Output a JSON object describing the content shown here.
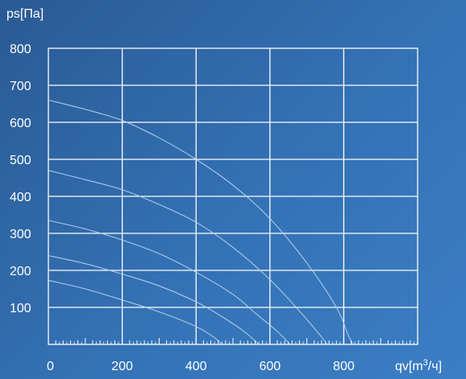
{
  "chart_data": {
    "type": "line",
    "ylabel": "ps[Па]",
    "xlabel_base": "qv[m",
    "xlabel_sup": "3",
    "xlabel_tail": "/ч]",
    "xlim": [
      0,
      1000
    ],
    "ylim": [
      0,
      800
    ],
    "x_ticks": [
      0,
      200,
      400,
      600,
      800
    ],
    "y_ticks": [
      100,
      200,
      300,
      400,
      500,
      600,
      700,
      800
    ],
    "grid": true,
    "minor_x_ticks_step": 20,
    "series": [
      {
        "points": [
          [
            0,
            660
          ],
          [
            100,
            635
          ],
          [
            200,
            605
          ],
          [
            300,
            558
          ],
          [
            400,
            500
          ],
          [
            500,
            430
          ],
          [
            600,
            340
          ],
          [
            700,
            220
          ],
          [
            780,
            100
          ],
          [
            810,
            30
          ],
          [
            825,
            0
          ]
        ]
      },
      {
        "points": [
          [
            0,
            470
          ],
          [
            100,
            445
          ],
          [
            200,
            418
          ],
          [
            300,
            378
          ],
          [
            400,
            330
          ],
          [
            500,
            262
          ],
          [
            600,
            175
          ],
          [
            680,
            90
          ],
          [
            740,
            20
          ],
          [
            755,
            0
          ]
        ]
      },
      {
        "points": [
          [
            0,
            335
          ],
          [
            100,
            312
          ],
          [
            200,
            282
          ],
          [
            300,
            245
          ],
          [
            400,
            195
          ],
          [
            500,
            135
          ],
          [
            560,
            85
          ],
          [
            620,
            35
          ],
          [
            655,
            0
          ]
        ]
      },
      {
        "points": [
          [
            0,
            240
          ],
          [
            100,
            218
          ],
          [
            200,
            190
          ],
          [
            300,
            158
          ],
          [
            400,
            115
          ],
          [
            470,
            75
          ],
          [
            530,
            35
          ],
          [
            570,
            0
          ]
        ]
      },
      {
        "points": [
          [
            0,
            173
          ],
          [
            100,
            150
          ],
          [
            200,
            120
          ],
          [
            300,
            88
          ],
          [
            400,
            48
          ],
          [
            450,
            18
          ],
          [
            470,
            0
          ]
        ]
      }
    ]
  },
  "colors": {
    "grid": "#ffffff",
    "curve": "#b9d4f0",
    "text": "#ffffff"
  }
}
